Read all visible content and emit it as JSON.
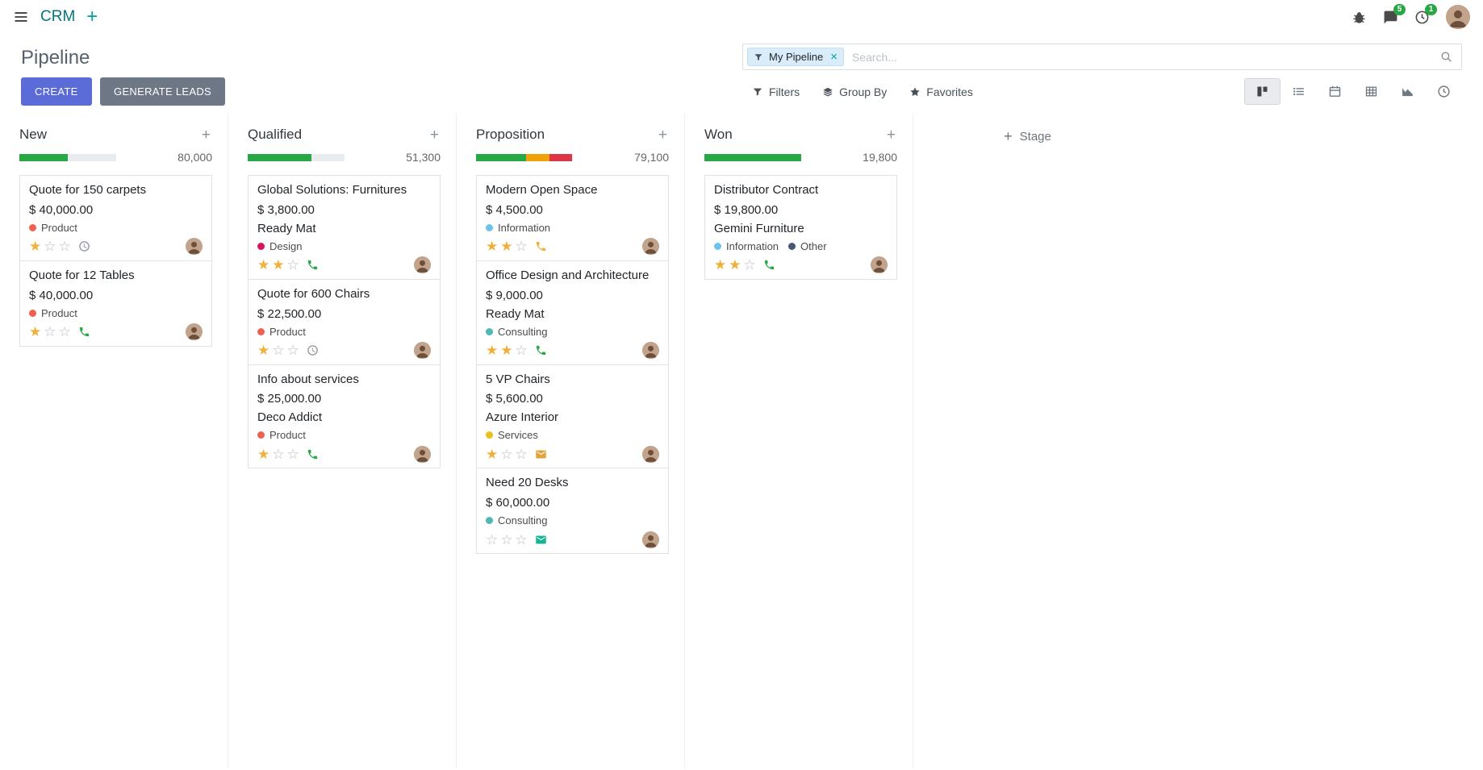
{
  "colors": {
    "primary_button": "#5b6cd9",
    "secondary_button": "#6e7785",
    "badge_green": "#28a745",
    "star_gold": "#efb139",
    "brand_teal": "#00a09d"
  },
  "navbar": {
    "app_name": "CRM",
    "messages_badge": "5",
    "activities_badge": "1"
  },
  "control_panel": {
    "title": "Pipeline",
    "create_label": "CREATE",
    "generate_leads_label": "GENERATE LEADS",
    "search": {
      "facet_label": "My Pipeline",
      "placeholder": "Search..."
    },
    "filters_label": "Filters",
    "group_by_label": "Group By",
    "favorites_label": "Favorites"
  },
  "kanban": {
    "add_stage_label": "Stage",
    "columns": [
      {
        "name": "New",
        "total": "80,000",
        "progress": [
          {
            "color": "#28a745",
            "pct": 50
          }
        ],
        "cards": [
          {
            "title": "Quote for 150 carpets",
            "amount": "$ 40,000.00",
            "partner": "",
            "tags": [
              {
                "label": "Product",
                "color": "#f06050"
              }
            ],
            "stars_filled": 1,
            "activity": {
              "icon": "clock",
              "color": "#8a919c"
            }
          },
          {
            "title": "Quote for 12 Tables",
            "amount": "$ 40,000.00",
            "partner": "",
            "tags": [
              {
                "label": "Product",
                "color": "#f06050"
              }
            ],
            "stars_filled": 1,
            "activity": {
              "icon": "phone",
              "color": "#28a745"
            }
          }
        ]
      },
      {
        "name": "Qualified",
        "total": "51,300",
        "progress": [
          {
            "color": "#28a745",
            "pct": 66
          }
        ],
        "cards": [
          {
            "title": "Global Solutions: Furnitures",
            "amount": "$ 3,800.00",
            "partner": "Ready Mat",
            "tags": [
              {
                "label": "Design",
                "color": "#d6145f"
              }
            ],
            "stars_filled": 2,
            "activity": {
              "icon": "phone",
              "color": "#28a745"
            }
          },
          {
            "title": "Quote for 600 Chairs",
            "amount": "$ 22,500.00",
            "partner": "",
            "tags": [
              {
                "label": "Product",
                "color": "#f06050"
              }
            ],
            "stars_filled": 1,
            "activity": {
              "icon": "clock",
              "color": "#8a919c"
            }
          },
          {
            "title": "Info about services",
            "amount": "$ 25,000.00",
            "partner": "Deco Addict",
            "tags": [
              {
                "label": "Product",
                "color": "#f06050"
              }
            ],
            "stars_filled": 1,
            "activity": {
              "icon": "phone",
              "color": "#28a745"
            }
          }
        ]
      },
      {
        "name": "Proposition",
        "total": "79,100",
        "progress": [
          {
            "color": "#28a745",
            "pct": 52
          },
          {
            "color": "#f0a009",
            "pct": 24
          },
          {
            "color": "#dc3545",
            "pct": 24
          }
        ],
        "cards": [
          {
            "title": "Modern Open Space",
            "amount": "$ 4,500.00",
            "partner": "",
            "tags": [
              {
                "label": "Information",
                "color": "#6cc1ed"
              }
            ],
            "stars_filled": 2,
            "activity": {
              "icon": "phone",
              "color": "#eab536"
            }
          },
          {
            "title": "Office Design and Architecture",
            "amount": "$ 9,000.00",
            "partner": "Ready Mat",
            "tags": [
              {
                "label": "Consulting",
                "color": "#4fb8b4"
              }
            ],
            "stars_filled": 2,
            "activity": {
              "icon": "phone",
              "color": "#28a745"
            }
          },
          {
            "title": "5 VP Chairs",
            "amount": "$ 5,600.00",
            "partner": "Azure Interior",
            "tags": [
              {
                "label": "Services",
                "color": "#e8c21c"
              }
            ],
            "stars_filled": 1,
            "activity": {
              "icon": "envelope",
              "color": "#e0a63c"
            }
          },
          {
            "title": "Need 20 Desks",
            "amount": "$ 60,000.00",
            "partner": "",
            "tags": [
              {
                "label": "Consulting",
                "color": "#4fb8b4"
              }
            ],
            "stars_filled": 0,
            "activity": {
              "icon": "envelope",
              "color": "#18b493"
            }
          }
        ]
      },
      {
        "name": "Won",
        "total": "19,800",
        "progress": [
          {
            "color": "#28a745",
            "pct": 100
          }
        ],
        "cards": [
          {
            "title": "Distributor Contract",
            "amount": "$ 19,800.00",
            "partner": "Gemini Furniture",
            "tags": [
              {
                "label": "Information",
                "color": "#6cc1ed"
              },
              {
                "label": "Other",
                "color": "#475577"
              }
            ],
            "stars_filled": 2,
            "activity": {
              "icon": "phone",
              "color": "#28a745"
            }
          }
        ]
      }
    ]
  }
}
